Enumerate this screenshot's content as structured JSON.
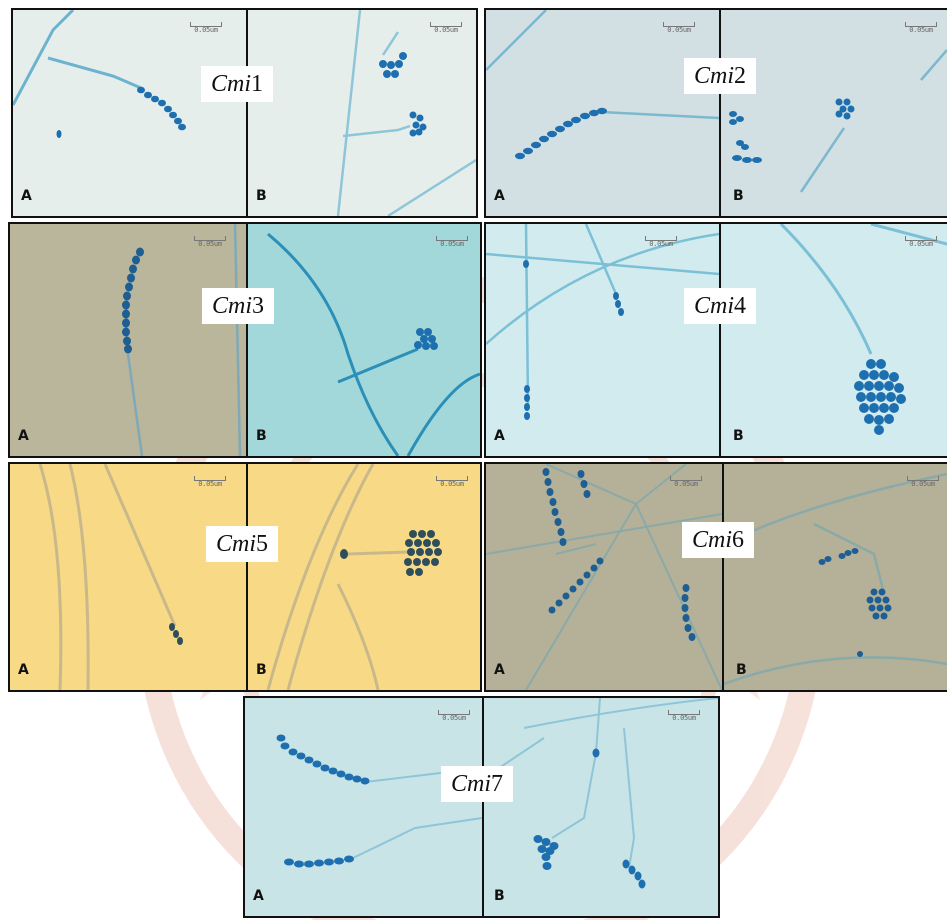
{
  "figures": [
    {
      "id": "1",
      "label_prefix": "Cmi",
      "label_num": "1",
      "left_panel": "A",
      "right_panel": "B",
      "scale_text": "0.05um",
      "background": "#e4ecea"
    },
    {
      "id": "2",
      "label_prefix": "Cmi",
      "label_num": "2",
      "left_panel": "A",
      "right_panel": "B",
      "scale_text": "0.05um",
      "background": "#d4e1e4"
    },
    {
      "id": "3",
      "label_prefix": "Cmi",
      "label_num": "3",
      "left_panel": "A",
      "right_panel": "B",
      "scale_text": "0.05um",
      "background_left": "#b9b59a",
      "background_right": "#9fd6d8"
    },
    {
      "id": "4",
      "label_prefix": "Cmi",
      "label_num": "4",
      "left_panel": "A",
      "right_panel": "B",
      "scale_text": "0.05um",
      "background": "#cfe9ee"
    },
    {
      "id": "5",
      "label_prefix": "Cmi",
      "label_num": "5",
      "left_panel": "A",
      "right_panel": "B",
      "scale_text": "0.05um",
      "background": "#f6d884"
    },
    {
      "id": "6",
      "label_prefix": "Cmi",
      "label_num": "6",
      "left_panel": "A",
      "right_panel": "B",
      "scale_text": "0.05um",
      "background": "#b3ae95"
    },
    {
      "id": "7",
      "label_prefix": "Cmi",
      "label_num": "7",
      "left_panel": "A",
      "right_panel": "B",
      "scale_text": "0.05um",
      "background": "#c6e3e6"
    }
  ],
  "colors": {
    "stain": "#1e6fb0",
    "hypha": "#5aaac9",
    "watermark": "#f3d6cf"
  }
}
